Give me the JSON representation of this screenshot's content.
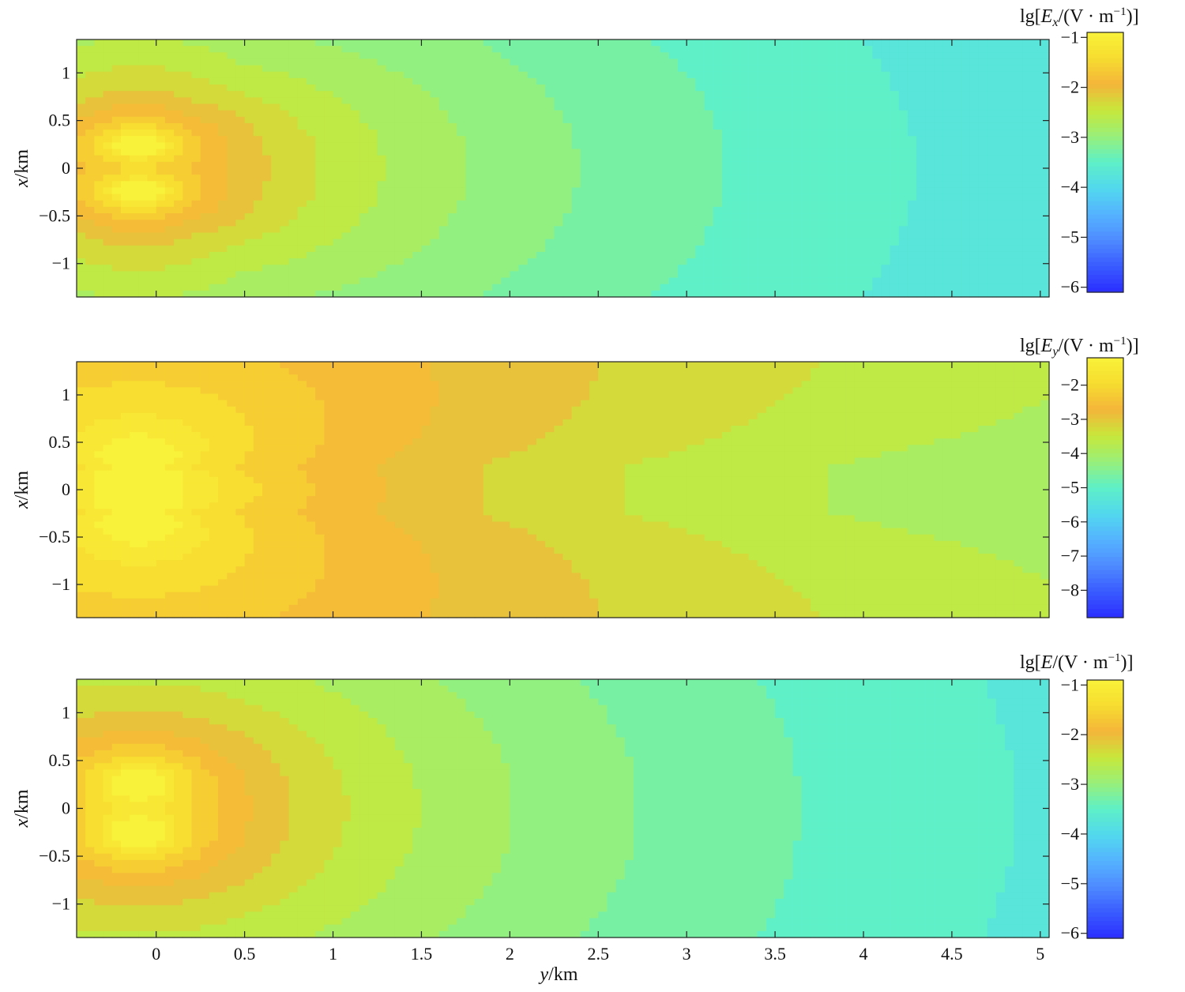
{
  "chart_data": [
    {
      "type": "heatmap",
      "title": "",
      "colorbar_label": "lg[Ex/(V·m⁻¹)]",
      "colorbar_parts": {
        "prefix": "lg[",
        "var": "E",
        "sub": "x",
        "mid": "/(V · m",
        "sup": "−1",
        "suffix": ")]"
      },
      "xlabel": "y/km",
      "ylabel": "x/km",
      "x_range": [
        -0.45,
        5.05
      ],
      "y_range": [
        -1.35,
        1.35
      ],
      "x_ticks": [
        0,
        0.5,
        1,
        1.5,
        2,
        2.5,
        3,
        3.5,
        4,
        4.5,
        5
      ],
      "x_tick_labels": [
        "0",
        "0.5",
        "1",
        "1.5",
        "2",
        "2.5",
        "3",
        "3.5",
        "4",
        "4.5",
        "5"
      ],
      "y_ticks": [
        1,
        0.5,
        0,
        -0.5,
        -1
      ],
      "y_tick_labels": [
        "1",
        "0.5",
        "0",
        "−0.5",
        "−1"
      ],
      "show_x_tick_labels": false,
      "color_range": [
        -6.1,
        -0.9
      ],
      "color_ticks": [
        -1,
        -2,
        -3,
        -4,
        -5,
        -6
      ],
      "color_tick_labels": [
        "−1",
        "−2",
        "−3",
        "−4",
        "−5",
        "−6"
      ],
      "source_points": [
        [
          -0.1,
          0.25
        ],
        [
          -0.1,
          -0.25
        ]
      ],
      "field": "Ex"
    },
    {
      "type": "heatmap",
      "title": "",
      "colorbar_label": "lg[Ey/(V·m⁻¹)]",
      "colorbar_parts": {
        "prefix": "lg[",
        "var": "E",
        "sub": "y",
        "mid": "/(V · m",
        "sup": "−1",
        "suffix": ")]"
      },
      "xlabel": "y/km",
      "ylabel": "x/km",
      "x_range": [
        -0.45,
        5.05
      ],
      "y_range": [
        -1.35,
        1.35
      ],
      "x_ticks": [
        0,
        0.5,
        1,
        1.5,
        2,
        2.5,
        3,
        3.5,
        4,
        4.5,
        5
      ],
      "x_tick_labels": [
        "0",
        "0.5",
        "1",
        "1.5",
        "2",
        "2.5",
        "3",
        "3.5",
        "4",
        "4.5",
        "5"
      ],
      "y_ticks": [
        1,
        0.5,
        0,
        -0.5,
        -1
      ],
      "y_tick_labels": [
        "1",
        "0.5",
        "0",
        "−0.5",
        "−1"
      ],
      "show_x_tick_labels": false,
      "color_range": [
        -8.8,
        -1.2
      ],
      "color_ticks": [
        -2,
        -3,
        -4,
        -5,
        -6,
        -7,
        -8
      ],
      "color_tick_labels": [
        "−2",
        "−3",
        "−4",
        "−5",
        "−6",
        "−7",
        "−8"
      ],
      "source_points": [
        [
          -0.1,
          0.25
        ],
        [
          -0.1,
          -0.25
        ]
      ],
      "field": "Ey"
    },
    {
      "type": "heatmap",
      "title": "",
      "colorbar_label": "lg[E/(V·m⁻¹)]",
      "colorbar_parts": {
        "prefix": "lg[",
        "var": "E",
        "sub": "",
        "mid": "/(V · m",
        "sup": "−1",
        "suffix": ")]"
      },
      "xlabel": "y/km",
      "ylabel": "x/km",
      "x_range": [
        -0.45,
        5.05
      ],
      "y_range": [
        -1.35,
        1.35
      ],
      "x_ticks": [
        0,
        0.5,
        1,
        1.5,
        2,
        2.5,
        3,
        3.5,
        4,
        4.5,
        5
      ],
      "x_tick_labels": [
        "0",
        "0.5",
        "1",
        "1.5",
        "2",
        "2.5",
        "3",
        "3.5",
        "4",
        "4.5",
        "5"
      ],
      "y_ticks": [
        1,
        0.5,
        0,
        -0.5,
        -1
      ],
      "y_tick_labels": [
        "1",
        "0.5",
        "0",
        "−0.5",
        "−1"
      ],
      "show_x_tick_labels": true,
      "color_range": [
        -6.1,
        -0.9
      ],
      "color_ticks": [
        -1,
        -2,
        -3,
        -4,
        -5,
        -6
      ],
      "color_tick_labels": [
        "−1",
        "−2",
        "−3",
        "−4",
        "−5",
        "−6"
      ],
      "source_points": [
        [
          -0.1,
          0.25
        ],
        [
          -0.1,
          -0.25
        ]
      ],
      "field": "E"
    }
  ],
  "colormap": [
    "#2b2eff",
    "#3a5cff",
    "#4f8bff",
    "#55b4ff",
    "#52d8ee",
    "#5ff0c8",
    "#98f07a",
    "#c8e83a",
    "#f5b53a",
    "#f7dd30",
    "#f9f23a"
  ]
}
